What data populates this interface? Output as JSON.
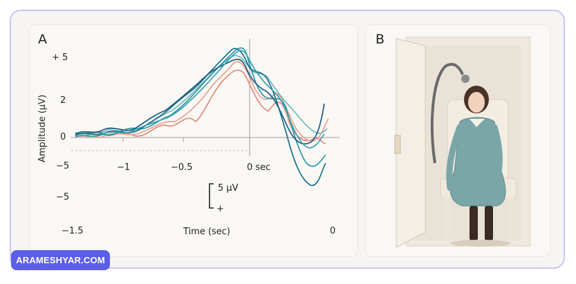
{
  "panel_a": {
    "letter": "A",
    "y_axis_label": "Amplitude (μV)",
    "x_axis_label": "Time (sec)",
    "y_ticks": [
      "+ 5",
      "2",
      "0",
      "−5",
      "−5"
    ],
    "x_ticks": [
      "−1",
      "−0.5",
      "0 sec"
    ],
    "x_corners": [
      "−1.5",
      "0"
    ],
    "scale_bar_label": "5 μV",
    "scale_bar_sign": "+",
    "trace_colors": [
      "#e08a7a",
      "#e8a08e",
      "#6fb6b8",
      "#2a9aa8",
      "#16708a",
      "#1d5a82",
      "#3aa0b0"
    ]
  },
  "panel_b": {
    "letter": "B",
    "illustration": "seated-woman-in-booth-illustration"
  },
  "watermark": {
    "text": "ARAMESHYAR.COM"
  },
  "colors": {
    "frame_border": "#c9c6f2",
    "watermark_bg": "#5b5ee6"
  }
}
